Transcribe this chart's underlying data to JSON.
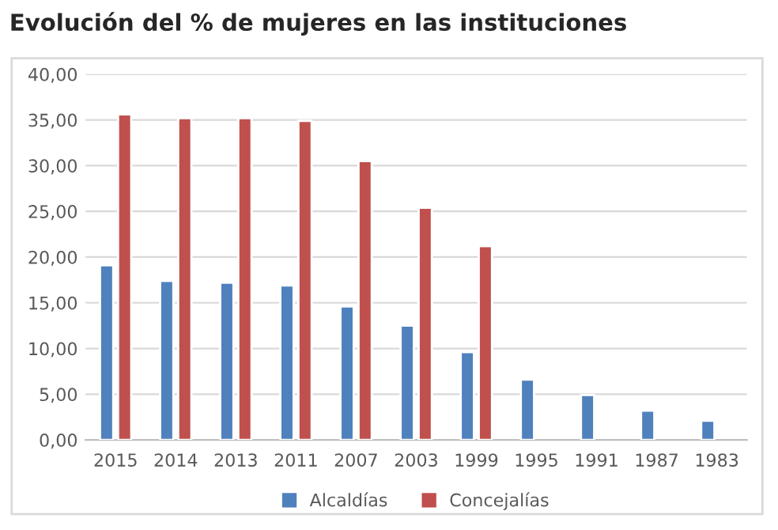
{
  "chart_data": {
    "type": "bar",
    "title": "Evolución del % de mujeres en las instituciones",
    "categories": [
      "2015",
      "2014",
      "2013",
      "2011",
      "2007",
      "2003",
      "1999",
      "1995",
      "1991",
      "1987",
      "1983"
    ],
    "series": [
      {
        "name": "Alcaldías",
        "color": "#4f81bd",
        "values": [
          19.1,
          17.4,
          17.2,
          16.9,
          14.6,
          12.5,
          9.6,
          6.6,
          4.9,
          3.2,
          2.1
        ]
      },
      {
        "name": "Concejalías",
        "color": "#c0504d",
        "values": [
          35.6,
          35.2,
          35.2,
          34.9,
          30.5,
          25.4,
          21.2,
          null,
          null,
          null,
          null
        ]
      }
    ],
    "ylim": [
      0,
      40
    ],
    "yticks": [
      {
        "value": 0,
        "label": "0,00"
      },
      {
        "value": 5,
        "label": "5,00"
      },
      {
        "value": 10,
        "label": "10,00"
      },
      {
        "value": 15,
        "label": "15,00"
      },
      {
        "value": 20,
        "label": "20,00"
      },
      {
        "value": 25,
        "label": "25,00"
      },
      {
        "value": 30,
        "label": "30,00"
      },
      {
        "value": 35,
        "label": "35,00"
      },
      {
        "value": 40,
        "label": "40,00"
      }
    ],
    "grid": "y",
    "legend": "bottom"
  }
}
